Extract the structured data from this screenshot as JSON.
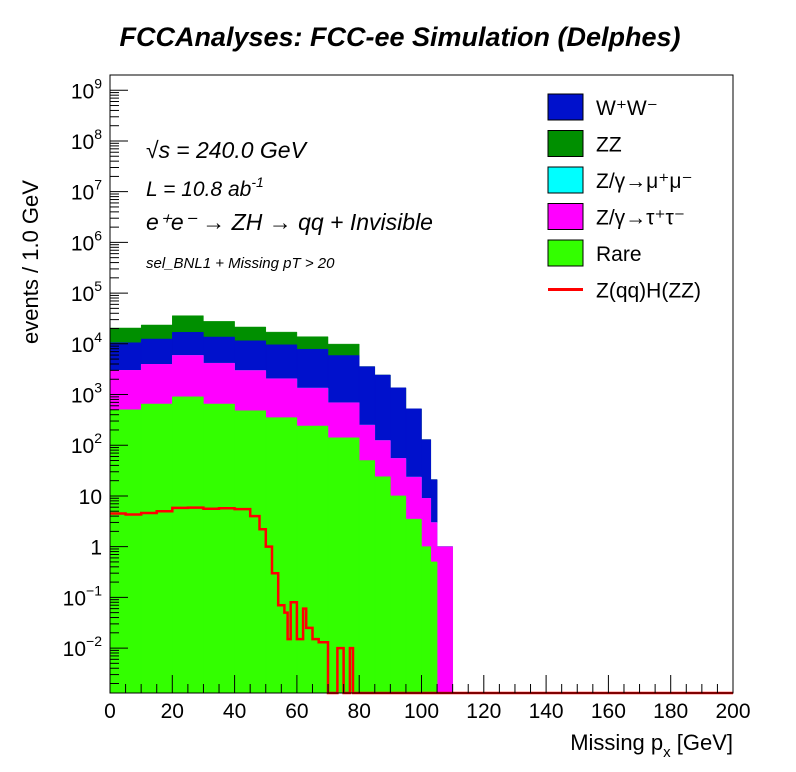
{
  "chart_data": {
    "type": "area",
    "stacked": true,
    "title": "FCCAnalyses: FCC-ee Simulation (Delphes)",
    "xlabel": "Missing p",
    "xlabel_sub": "x",
    "xlabel_unit": " [GeV]",
    "ylabel": "events / 1.0 GeV",
    "xlim": [
      0,
      200
    ],
    "ylim": [
      0.0013,
      2000000000
    ],
    "ylog": true,
    "grid": false,
    "legend_position": "top-right",
    "x_ticks": [
      "0",
      "20",
      "40",
      "60",
      "80",
      "100",
      "120",
      "140",
      "160",
      "180",
      "200"
    ],
    "y_ticks": [
      {
        "base": "10",
        "exp": "9",
        "value": 1000000000
      },
      {
        "base": "10",
        "exp": "8",
        "value": 100000000
      },
      {
        "base": "10",
        "exp": "7",
        "value": 10000000
      },
      {
        "base": "10",
        "exp": "6",
        "value": 1000000
      },
      {
        "base": "10",
        "exp": "5",
        "value": 100000
      },
      {
        "base": "10",
        "exp": "4",
        "value": 10000
      },
      {
        "base": "10",
        "exp": "3",
        "value": 1000
      },
      {
        "base": "10",
        "exp": "2",
        "value": 100
      },
      {
        "base": "10",
        "exp": "",
        "value": 10
      },
      {
        "base": "1",
        "exp": "",
        "value": 1
      },
      {
        "base": "10",
        "exp": "−1",
        "value": 0.1
      },
      {
        "base": "10",
        "exp": "−2",
        "value": 0.01
      }
    ],
    "annotations": {
      "sqrt_s": "= 240.0 GeV",
      "sqrt_s_symbol": "√s",
      "lumi_prefix": "L = 10.8 ab",
      "lumi_exp": "-1",
      "process": "e⁺e⁻ → ZH → qq + Invisible",
      "selection": "sel_BNL1 + Missing pT > 20"
    },
    "x": [
      0,
      10,
      20,
      30,
      40,
      50,
      60,
      70,
      80,
      85,
      90,
      95,
      100,
      103,
      105,
      107,
      108,
      110
    ],
    "series": [
      {
        "name": "Rare",
        "color": "#33ff00",
        "values": [
          500,
          650,
          900,
          650,
          480,
          350,
          240,
          140,
          50,
          24,
          10,
          3.5,
          1,
          0.5,
          0.0013,
          0.0013,
          0,
          0
        ]
      },
      {
        "name": "Z/γ→τ⁺τ⁻",
        "color": "#ff00ff",
        "values": [
          2500,
          3300,
          5000,
          3500,
          2500,
          1700,
          1100,
          550,
          200,
          100,
          45,
          20,
          8,
          2.5,
          1,
          1,
          1,
          0
        ]
      },
      {
        "name": "Z/γ→μ⁺μ⁻",
        "color": "#00ffff",
        "values": [
          0,
          0,
          0,
          0,
          0,
          0,
          0,
          0,
          0,
          0,
          0,
          0,
          0,
          0,
          0,
          0,
          0,
          0
        ]
      },
      {
        "name": "W⁺W⁻",
        "color": "#0011cc",
        "values": [
          7500,
          8500,
          11000,
          9500,
          8500,
          7500,
          6500,
          5200,
          3300,
          2300,
          1300,
          500,
          120,
          18,
          0,
          0,
          0,
          0
        ]
      },
      {
        "name": "ZZ",
        "color": "#008f00",
        "values": [
          10000,
          11000,
          19000,
          14000,
          10000,
          7500,
          6000,
          4000,
          0,
          0,
          0,
          0,
          0,
          0,
          0,
          0,
          0,
          0
        ]
      }
    ],
    "signal": {
      "name": "Z(qq)H(ZZ)",
      "color": "#ff0000",
      "x": [
        0,
        5,
        10,
        15,
        20,
        25,
        30,
        35,
        40,
        45,
        48,
        50,
        52,
        54,
        56,
        57,
        58,
        60,
        62,
        63,
        65,
        67,
        70,
        72,
        73,
        75,
        77,
        78,
        80,
        200
      ],
      "values": [
        4.5,
        4.3,
        4.6,
        5.0,
        5.8,
        5.9,
        5.6,
        5.7,
        5.5,
        4.0,
        2.2,
        1.0,
        0.3,
        0.07,
        0.05,
        0.015,
        0.08,
        0.015,
        0.06,
        0.025,
        0.015,
        0.013,
        0.0013,
        0.0013,
        0.01,
        0.0013,
        0.01,
        0.0013,
        0.0013,
        0.0013
      ]
    },
    "legend": [
      "W⁺W⁻",
      "ZZ",
      "Z/γ→μ⁺μ⁻",
      "Z/γ→τ⁺τ⁻",
      "Rare",
      "Z(qq)H(ZZ)"
    ]
  }
}
